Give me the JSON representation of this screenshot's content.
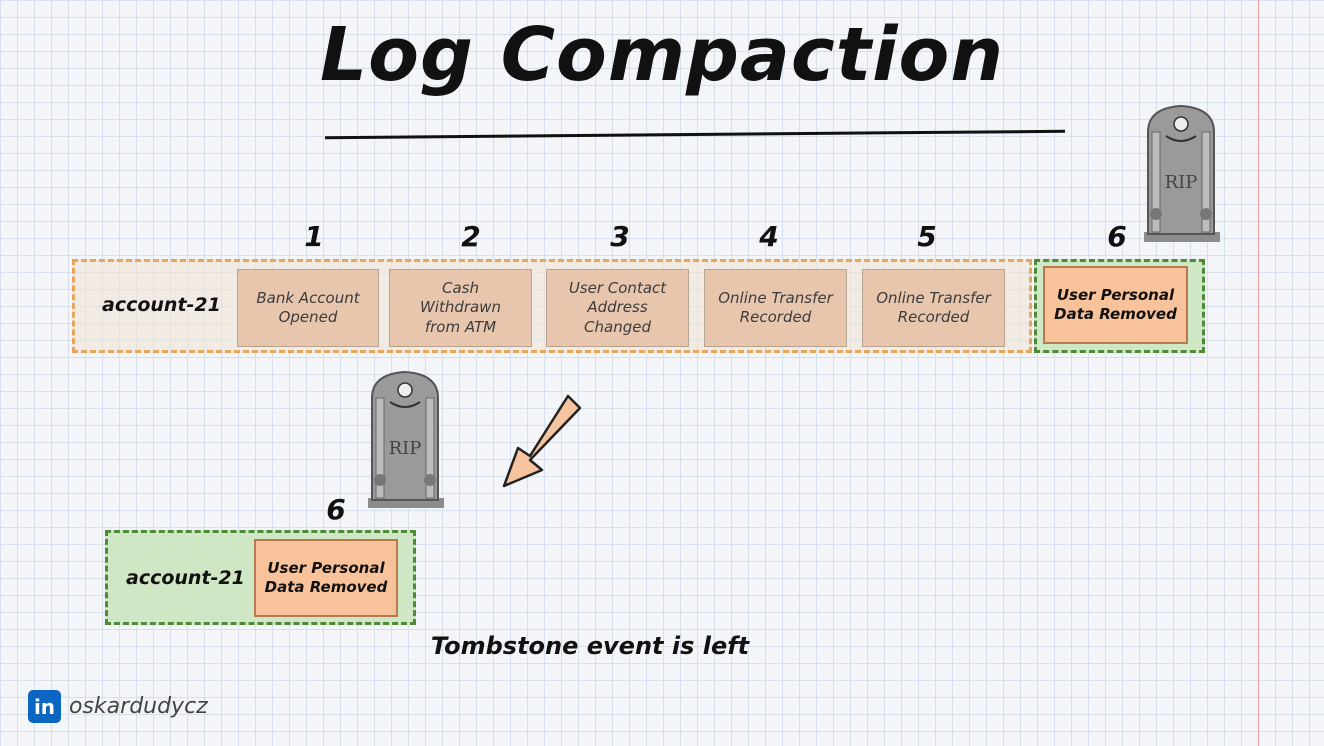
{
  "title": "Log Compaction",
  "top_stream": {
    "label": "account-21",
    "events": [
      {
        "number": "1",
        "text": [
          "Bank Account",
          "Opened"
        ]
      },
      {
        "number": "2",
        "text": [
          "Cash",
          "Withdrawn",
          "from ATM"
        ]
      },
      {
        "number": "3",
        "text": [
          "User Contact",
          "Address",
          "Changed"
        ]
      },
      {
        "number": "4",
        "text": [
          "Online Transfer",
          "Recorded"
        ]
      },
      {
        "number": "5",
        "text": [
          "Online Transfer",
          "Recorded"
        ]
      }
    ],
    "tombstone_event": {
      "number": "6",
      "text": [
        "User Personal",
        "Data Removed"
      ]
    }
  },
  "bottom_stream": {
    "label": "account-21",
    "event": {
      "number": "6",
      "text": [
        "User Personal",
        "Data Removed"
      ]
    }
  },
  "tombstone_icon": {
    "icon": "tombstone-icon",
    "engraving": "RIP"
  },
  "caption": "Tombstone event is left",
  "brand": {
    "logo": "in",
    "handle": "oskardudycz"
  },
  "colors": {
    "orange_border": "#e8a55c",
    "green_border": "#4e8a3a",
    "green_fill": "#cfe7c5",
    "event_fill": "#f8c29a"
  }
}
